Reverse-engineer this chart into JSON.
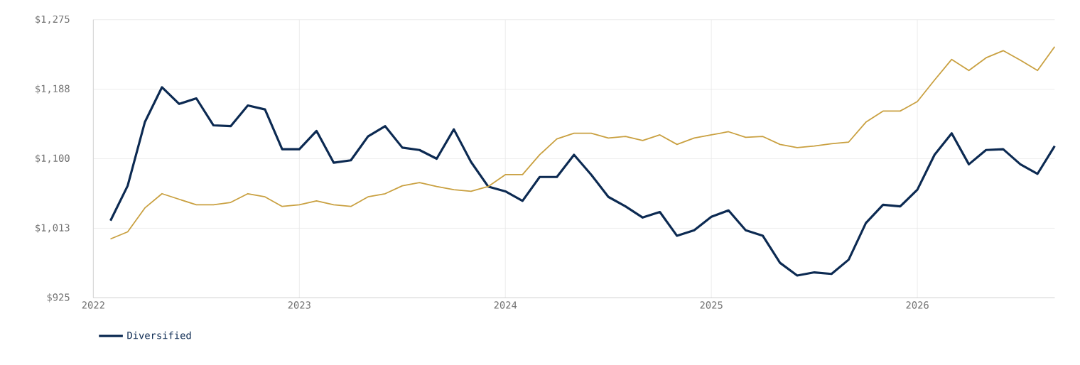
{
  "chart_data": {
    "type": "line",
    "x": [
      "2022-02",
      "2022-03",
      "2022-04",
      "2022-05",
      "2022-06",
      "2022-07",
      "2022-08",
      "2022-09",
      "2022-10",
      "2022-11",
      "2022-12",
      "2023-01",
      "2023-02",
      "2023-03",
      "2023-04",
      "2023-05",
      "2023-06",
      "2023-07",
      "2023-08",
      "2023-09",
      "2023-10",
      "2023-11",
      "2023-12",
      "2024-01",
      "2024-02",
      "2024-03",
      "2024-04",
      "2024-05",
      "2024-06",
      "2024-07",
      "2024-08",
      "2024-09",
      "2024-10",
      "2024-11",
      "2024-12",
      "2025-01",
      "2025-02",
      "2025-03",
      "2025-04",
      "2025-05",
      "2025-06",
      "2025-07",
      "2025-08",
      "2025-09",
      "2025-10",
      "2025-11",
      "2025-12",
      "2026-01",
      "2026-02",
      "2026-03",
      "2026-04",
      "2026-05",
      "2026-06",
      "2026-07",
      "2026-08",
      "2026-09"
    ],
    "series": [
      {
        "name": "Diversified",
        "color": "#0c2a52",
        "values": [
          1022,
          1066,
          1146,
          1190,
          1169,
          1176,
          1142,
          1141,
          1167,
          1162,
          1112,
          1112,
          1135,
          1095,
          1098,
          1128,
          1141,
          1114,
          1111,
          1100,
          1137,
          1096,
          1065,
          1059,
          1047,
          1077,
          1077,
          1105,
          1080,
          1052,
          1040,
          1026,
          1033,
          1003,
          1010,
          1027,
          1035,
          1010,
          1003,
          969,
          953,
          957,
          955,
          973,
          1019,
          1042,
          1040,
          1061,
          1105,
          1132,
          1093,
          1111,
          1112,
          1093,
          1081,
          1116
        ]
      },
      {
        "color": "#c9a040",
        "values": [
          999,
          1008,
          1038,
          1056,
          1049,
          1042,
          1042,
          1045,
          1056,
          1052,
          1040,
          1042,
          1047,
          1042,
          1040,
          1052,
          1056,
          1066,
          1070,
          1065,
          1061,
          1059,
          1065,
          1080,
          1080,
          1105,
          1125,
          1132,
          1132,
          1126,
          1128,
          1123,
          1130,
          1118,
          1126,
          1130,
          1134,
          1127,
          1128,
          1118,
          1114,
          1116,
          1119,
          1121,
          1146,
          1160,
          1160,
          1172,
          1199,
          1225,
          1211,
          1227,
          1236,
          1224,
          1211,
          1241
        ]
      }
    ],
    "xlim": [
      "2022",
      "2026-09"
    ],
    "xticks": [
      "2022",
      "2023",
      "2024",
      "2025",
      "2026"
    ],
    "ylim": [
      925,
      1275
    ],
    "yticks": [
      {
        "value": 925,
        "label": "$925"
      },
      {
        "value": 1012.5,
        "label": "$1,013"
      },
      {
        "value": 1100,
        "label": "$1,100"
      },
      {
        "value": 1187.5,
        "label": "$1,188"
      },
      {
        "value": 1275,
        "label": "$1,275"
      }
    ],
    "grid": true,
    "legend": "bottom"
  }
}
